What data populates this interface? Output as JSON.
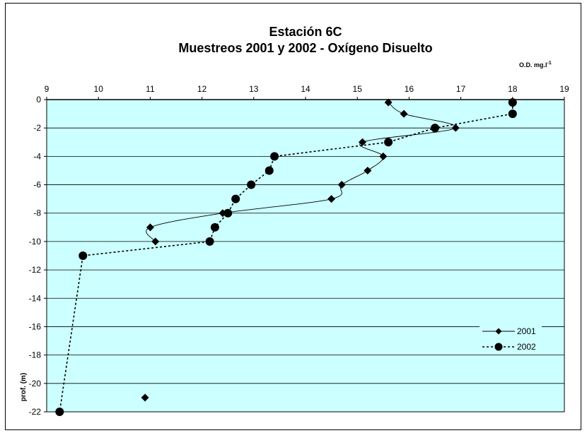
{
  "chart_data": {
    "type": "line",
    "title": "Estación 6C",
    "subtitle": "Muestreos 2001 y 2002 - Oxígeno Disuelto",
    "xlabel": "O.D. mg.l",
    "xlabel_superscript": "-1",
    "ylabel": "prof. (m)",
    "xlim": [
      9,
      19
    ],
    "ylim": [
      -22,
      0
    ],
    "x_ticks": [
      "9",
      "10",
      "11",
      "12",
      "13",
      "14",
      "15",
      "16",
      "17",
      "18",
      "19"
    ],
    "y_ticks": [
      "0",
      "-2",
      "-4",
      "-6",
      "-8",
      "-10",
      "-12",
      "-14",
      "-16",
      "-18",
      "-20",
      "-22"
    ],
    "grid": "horizontal",
    "plot_background": "#CCFFFF",
    "legend_position": "bottom-right",
    "series": [
      {
        "name": "2001",
        "marker": "diamond",
        "line": "solid-smooth",
        "points": [
          {
            "x": 15.6,
            "y": -0.2
          },
          {
            "x": 15.9,
            "y": -1
          },
          {
            "x": 16.9,
            "y": -2
          },
          {
            "x": 15.1,
            "y": -3
          },
          {
            "x": 15.5,
            "y": -4
          },
          {
            "x": 15.2,
            "y": -5
          },
          {
            "x": 14.7,
            "y": -6
          },
          {
            "x": 14.5,
            "y": -7
          },
          {
            "x": 12.4,
            "y": -8
          },
          {
            "x": 11.0,
            "y": -9
          },
          {
            "x": 11.1,
            "y": -10
          }
        ],
        "isolated_points": [
          {
            "x": 10.9,
            "y": -21
          }
        ]
      },
      {
        "name": "2002",
        "marker": "circle",
        "line": "dotted",
        "points": [
          {
            "x": 18.0,
            "y": -0.2
          },
          {
            "x": 18.0,
            "y": -1
          },
          {
            "x": 16.5,
            "y": -2
          },
          {
            "x": 15.6,
            "y": -3
          },
          {
            "x": 13.4,
            "y": -4
          },
          {
            "x": 13.3,
            "y": -5
          },
          {
            "x": 12.95,
            "y": -6
          },
          {
            "x": 12.65,
            "y": -7
          },
          {
            "x": 12.5,
            "y": -8
          },
          {
            "x": 12.25,
            "y": -9
          },
          {
            "x": 12.15,
            "y": -10
          },
          {
            "x": 9.7,
            "y": -11
          },
          {
            "x": 9.25,
            "y": -22
          }
        ]
      }
    ]
  }
}
